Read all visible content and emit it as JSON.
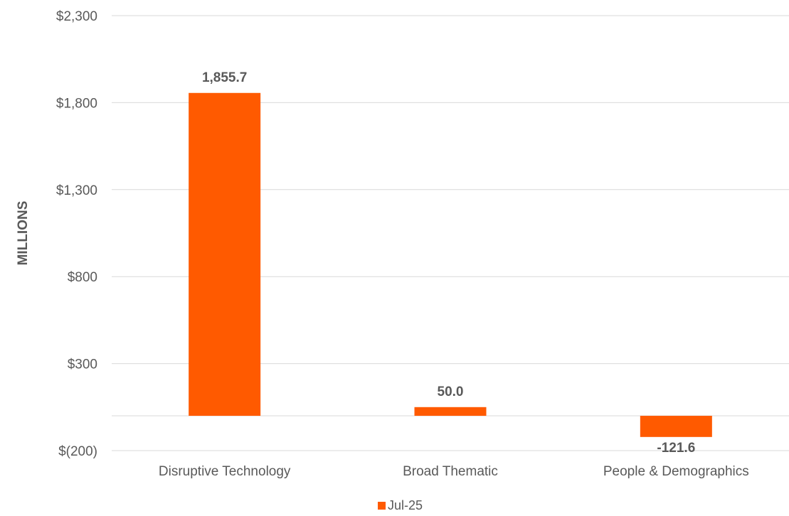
{
  "chart_data": {
    "type": "bar",
    "categories": [
      "Disruptive Technology",
      "Broad Thematic",
      "People & Demographics"
    ],
    "series": [
      {
        "name": "Jul-25",
        "values": [
          1855.7,
          50.0,
          -121.6
        ],
        "data_labels": [
          "1,855.7",
          "50.0",
          "-121.6"
        ],
        "color": "#FF5A00"
      }
    ],
    "ylabel": "MILLIONS",
    "xlabel": "",
    "ylim": [
      -200,
      2300
    ],
    "yticks": [
      -200,
      300,
      800,
      1300,
      1800,
      2300
    ],
    "ytick_labels": [
      "$(200)",
      "$300",
      "$800",
      "$1,300",
      "$1,800",
      "$2,300"
    ],
    "grid": true,
    "legend": "bottom-center",
    "colors": {
      "bar": "#FF5A00",
      "grid": "#D9D9D9",
      "axis_text": "#595959"
    }
  }
}
